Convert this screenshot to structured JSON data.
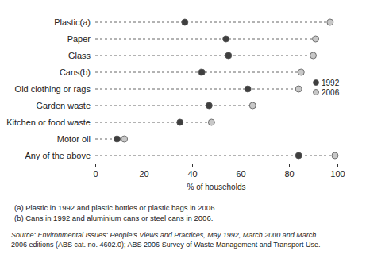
{
  "chart_data": {
    "type": "dot",
    "orientation": "horizontal",
    "categories": [
      "Plastic(a)",
      "Paper",
      "Glass",
      "Cans(b)",
      "Old clothing or rags",
      "Garden waste",
      "Kitchen or food waste",
      "Motor oil",
      "Any of the above"
    ],
    "series": [
      {
        "name": "1992",
        "color": "#3f3f3f",
        "marker": "circle",
        "values": [
          37,
          54,
          55,
          44,
          63,
          47,
          35,
          9,
          84
        ]
      },
      {
        "name": "2006",
        "color": "#c8c8c8",
        "marker": "circle",
        "values": [
          97,
          91,
          90,
          85,
          84,
          65,
          48,
          12,
          99
        ]
      }
    ],
    "xlabel": "% of households",
    "xlim": [
      0,
      100
    ],
    "xticks": [
      0,
      20,
      40,
      60,
      80,
      100
    ],
    "legend": "right",
    "line_style": "dashed",
    "footnotes": [
      "(a) Plastic in 1992 and plastic bottles or plastic bags in 2006.",
      "(b) Cans in 1992 and aluminium cans or steel cans in 2006."
    ],
    "source": [
      "Source: Environmental Issues: People's Views and Practices, May 1992, March 2000 and March",
      "2006 editions (ABS cat. no. 4602.0); ABS 2006 Survey of Waste Management and Transport Use."
    ]
  }
}
